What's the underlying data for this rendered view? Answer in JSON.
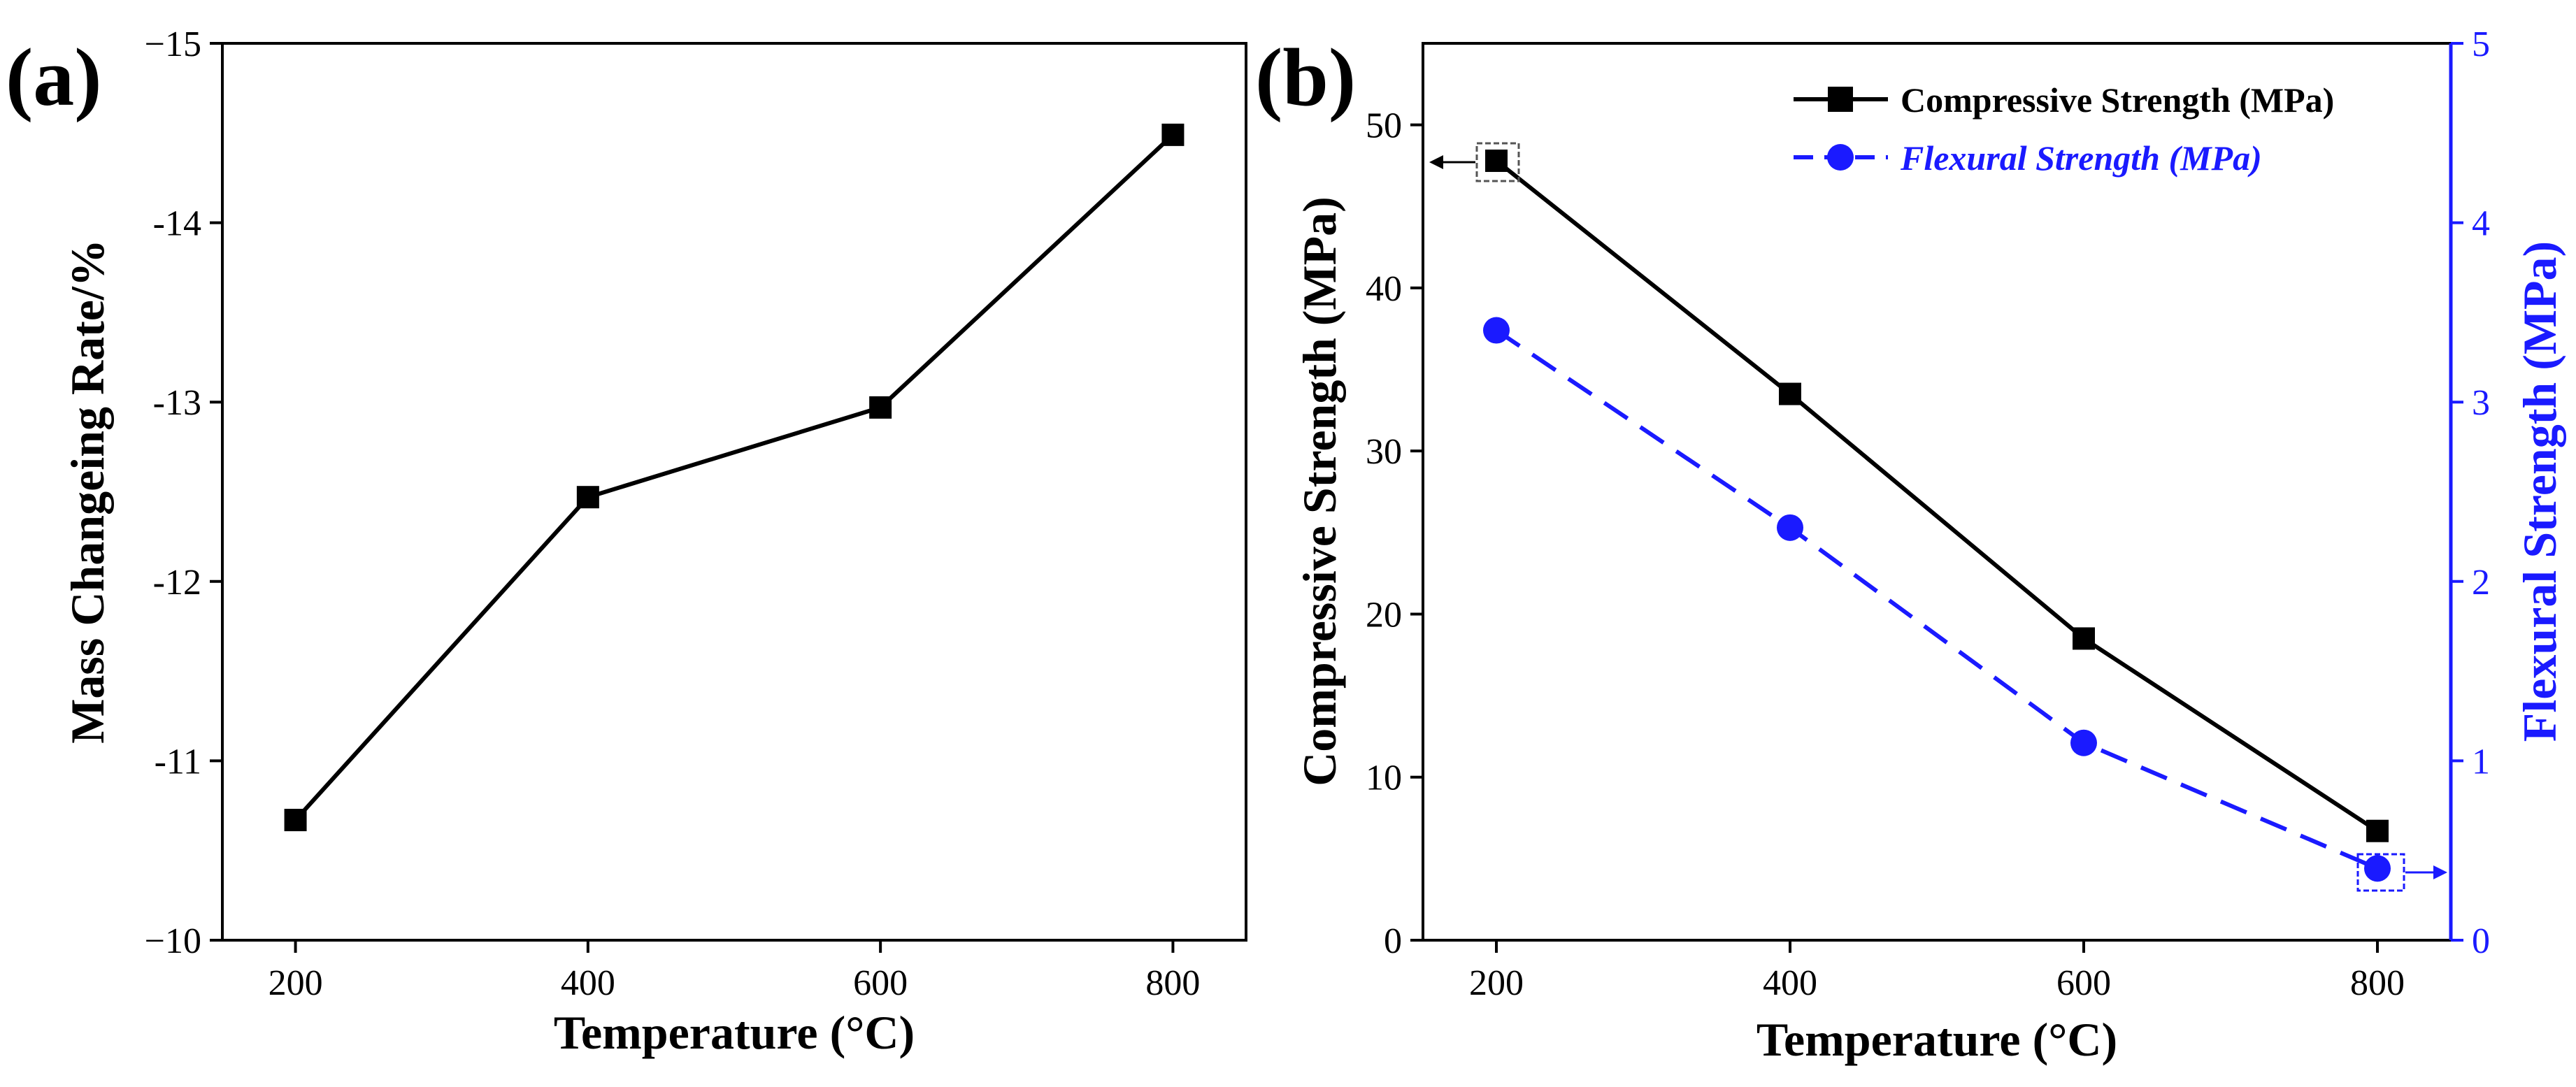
{
  "colors": {
    "black": "#000000",
    "blue": "#1a1aff"
  },
  "chart_data": [
    {
      "panel": "(a)",
      "type": "line",
      "x": [
        200,
        400,
        600,
        800
      ],
      "series": [
        {
          "name": "Mass Changeing Rate",
          "values": [
            -10.67,
            -12.47,
            -12.97,
            -14.49
          ],
          "color": "#000000",
          "marker": "square",
          "style": "solid"
        }
      ],
      "xlabel": "Temperature (°C)",
      "ylabel": "Mass Changeing Rate/%",
      "xlim": [
        150,
        850
      ],
      "ylim": [
        -10,
        -15
      ],
      "xticks": [
        200,
        400,
        600,
        800
      ],
      "yticks": [
        -10,
        -11,
        -12,
        -13,
        -14,
        -15
      ],
      "xtick_labels": [
        "200",
        "400",
        "600",
        "800"
      ],
      "ytick_labels": [
        "−10",
        "-11",
        "-12",
        "-13",
        "-14",
        "−15"
      ],
      "grid": false
    },
    {
      "panel": "(b)",
      "type": "line",
      "x": [
        200,
        400,
        600,
        800
      ],
      "series": [
        {
          "name": "Compressive Strength (MPa)",
          "values": [
            47.8,
            33.5,
            18.5,
            6.7
          ],
          "color": "#000000",
          "marker": "square",
          "style": "solid",
          "axis": "left"
        },
        {
          "name": "Flexural Strength (MPa)",
          "values": [
            3.4,
            2.3,
            1.1,
            0.4
          ],
          "color": "#1a1aff",
          "marker": "circle",
          "style": "dashed",
          "axis": "right"
        }
      ],
      "xlabel": "Temperature (°C)",
      "ylabel_left": "Compressive Strength (MPa)",
      "ylabel_right": "Flexural Strength (MPa)",
      "xlim": [
        150,
        850
      ],
      "ylim_left": [
        0,
        55
      ],
      "ylim_right": [
        0,
        5
      ],
      "xticks": [
        200,
        400,
        600,
        800
      ],
      "yticks_left": [
        0,
        10,
        20,
        30,
        40,
        50
      ],
      "yticks_right": [
        0,
        1,
        2,
        3,
        4,
        5
      ],
      "xtick_labels": [
        "200",
        "400",
        "600",
        "800"
      ],
      "ytick_labels_left": [
        "0",
        "10",
        "20",
        "30",
        "40",
        "50"
      ],
      "ytick_labels_right": [
        "0",
        "1",
        "2",
        "3",
        "4",
        "5"
      ],
      "legend_position": "top-right",
      "grid": false
    }
  ]
}
